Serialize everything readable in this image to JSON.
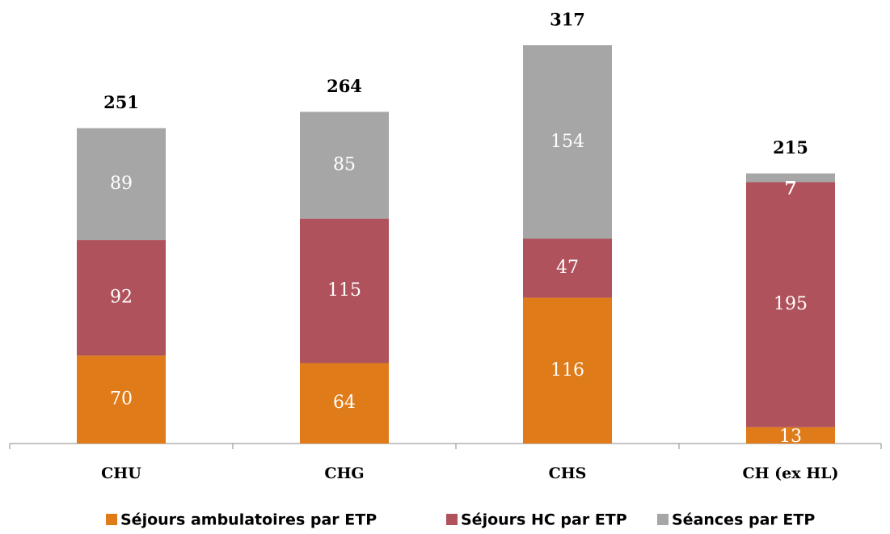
{
  "chart_data": {
    "type": "stacked_bar",
    "categories": [
      "CHU",
      "CHG",
      "CHS",
      "CH (ex HL)"
    ],
    "series": [
      {
        "name": "Séjours ambulatoires par ETP",
        "color": "#e07b1a",
        "values": [
          70,
          64,
          116,
          13
        ]
      },
      {
        "name": "Séjours HC par ETP",
        "color": "#b0525c",
        "values": [
          92,
          115,
          47,
          195
        ]
      },
      {
        "name": "Séances par ETP",
        "color": "#a6a6a6",
        "values": [
          89,
          85,
          154,
          7
        ]
      }
    ],
    "totals": [
      251,
      264,
      317,
      215
    ],
    "legend": "bottom"
  }
}
